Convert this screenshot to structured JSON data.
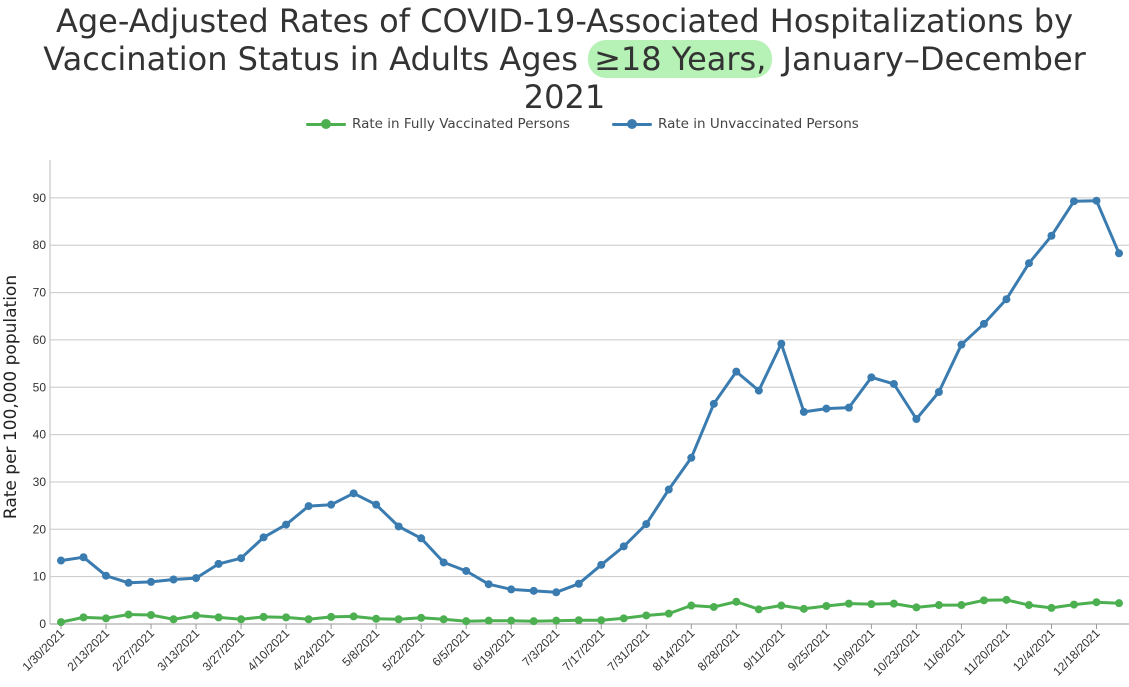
{
  "title": {
    "line1": "Age-Adjusted Rates of COVID-19-Associated Hospitalizations by",
    "line2_prefix": "Vaccination Status in Adults Ages ",
    "line2_highlight": "≥18 Years,",
    "line2_suffix": " January–December 2021"
  },
  "colors": {
    "vaccinated": "#4caf50",
    "unvaccinated": "#3a7bb0",
    "grid": "#c8c8c8",
    "highlight": "#b6f2b6"
  },
  "chart_data": {
    "type": "line",
    "title": "Age-Adjusted Rates of COVID-19-Associated Hospitalizations by Vaccination Status in Adults Ages ≥18 Years, January–December 2021",
    "xlabel": "",
    "ylabel": "Rate per 100,000 population",
    "ylim": [
      0,
      98
    ],
    "yticks": [
      0,
      10,
      20,
      30,
      40,
      50,
      60,
      70,
      80,
      90
    ],
    "grid": true,
    "legend_position": "top-center",
    "x": [
      "1/30/2021",
      "2/6/2021",
      "2/13/2021",
      "2/20/2021",
      "2/27/2021",
      "3/6/2021",
      "3/13/2021",
      "3/20/2021",
      "3/27/2021",
      "4/3/2021",
      "4/10/2021",
      "4/17/2021",
      "4/24/2021",
      "5/1/2021",
      "5/8/2021",
      "5/15/2021",
      "5/22/2021",
      "5/29/2021",
      "6/5/2021",
      "6/12/2021",
      "6/19/2021",
      "6/26/2021",
      "7/3/2021",
      "7/10/2021",
      "7/17/2021",
      "7/24/2021",
      "7/31/2021",
      "8/7/2021",
      "8/14/2021",
      "8/21/2021",
      "8/28/2021",
      "9/4/2021",
      "9/11/2021",
      "9/18/2021",
      "9/25/2021",
      "10/2/2021",
      "10/9/2021",
      "10/16/2021",
      "10/23/2021",
      "10/30/2021",
      "11/6/2021",
      "11/13/2021",
      "11/20/2021",
      "11/27/2021",
      "12/4/2021",
      "12/11/2021",
      "12/18/2021",
      "12/25/2021"
    ],
    "tick_labels": [
      "1/30/2021",
      "2/13/2021",
      "2/27/2021",
      "3/13/2021",
      "3/27/2021",
      "4/10/2021",
      "4/24/2021",
      "5/8/2021",
      "5/22/2021",
      "6/5/2021",
      "6/19/2021",
      "7/3/2021",
      "7/17/2021",
      "7/31/2021",
      "8/14/2021",
      "8/28/2021",
      "9/11/2021",
      "9/25/2021",
      "10/9/2021",
      "10/23/2021",
      "11/6/2021",
      "11/20/2021",
      "12/4/2021",
      "12/18/2021"
    ],
    "series": [
      {
        "name": "Rate in Fully Vaccinated Persons",
        "key": "vaccinated",
        "values": [
          0.4,
          1.4,
          1.2,
          2.0,
          1.9,
          1.0,
          1.8,
          1.4,
          1.0,
          1.5,
          1.4,
          1.0,
          1.5,
          1.6,
          1.1,
          1.0,
          1.3,
          1.0,
          0.6,
          0.7,
          0.7,
          0.6,
          0.7,
          0.8,
          0.8,
          1.2,
          1.8,
          2.2,
          3.9,
          3.6,
          4.7,
          3.1,
          3.9,
          3.2,
          3.8,
          4.3,
          4.2,
          4.3,
          3.5,
          4.0,
          4.0,
          5.0,
          5.1,
          4.0,
          3.4,
          4.1,
          4.6,
          4.4
        ]
      },
      {
        "name": "Rate in Unvaccinated Persons",
        "key": "unvaccinated",
        "values": [
          13.4,
          14.1,
          10.2,
          8.7,
          8.9,
          9.4,
          9.7,
          12.7,
          13.9,
          18.3,
          21.0,
          24.9,
          25.2,
          27.6,
          25.2,
          20.6,
          18.1,
          13.0,
          11.2,
          8.4,
          7.3,
          7.0,
          6.7,
          8.5,
          12.5,
          16.4,
          21.1,
          28.4,
          35.1,
          46.5,
          53.3,
          49.3,
          59.2,
          44.8,
          45.5,
          45.7,
          52.1,
          50.7,
          43.3,
          49.0,
          59.0,
          63.4,
          68.6,
          76.2,
          82.0,
          89.3,
          89.4,
          78.3
        ]
      }
    ]
  }
}
